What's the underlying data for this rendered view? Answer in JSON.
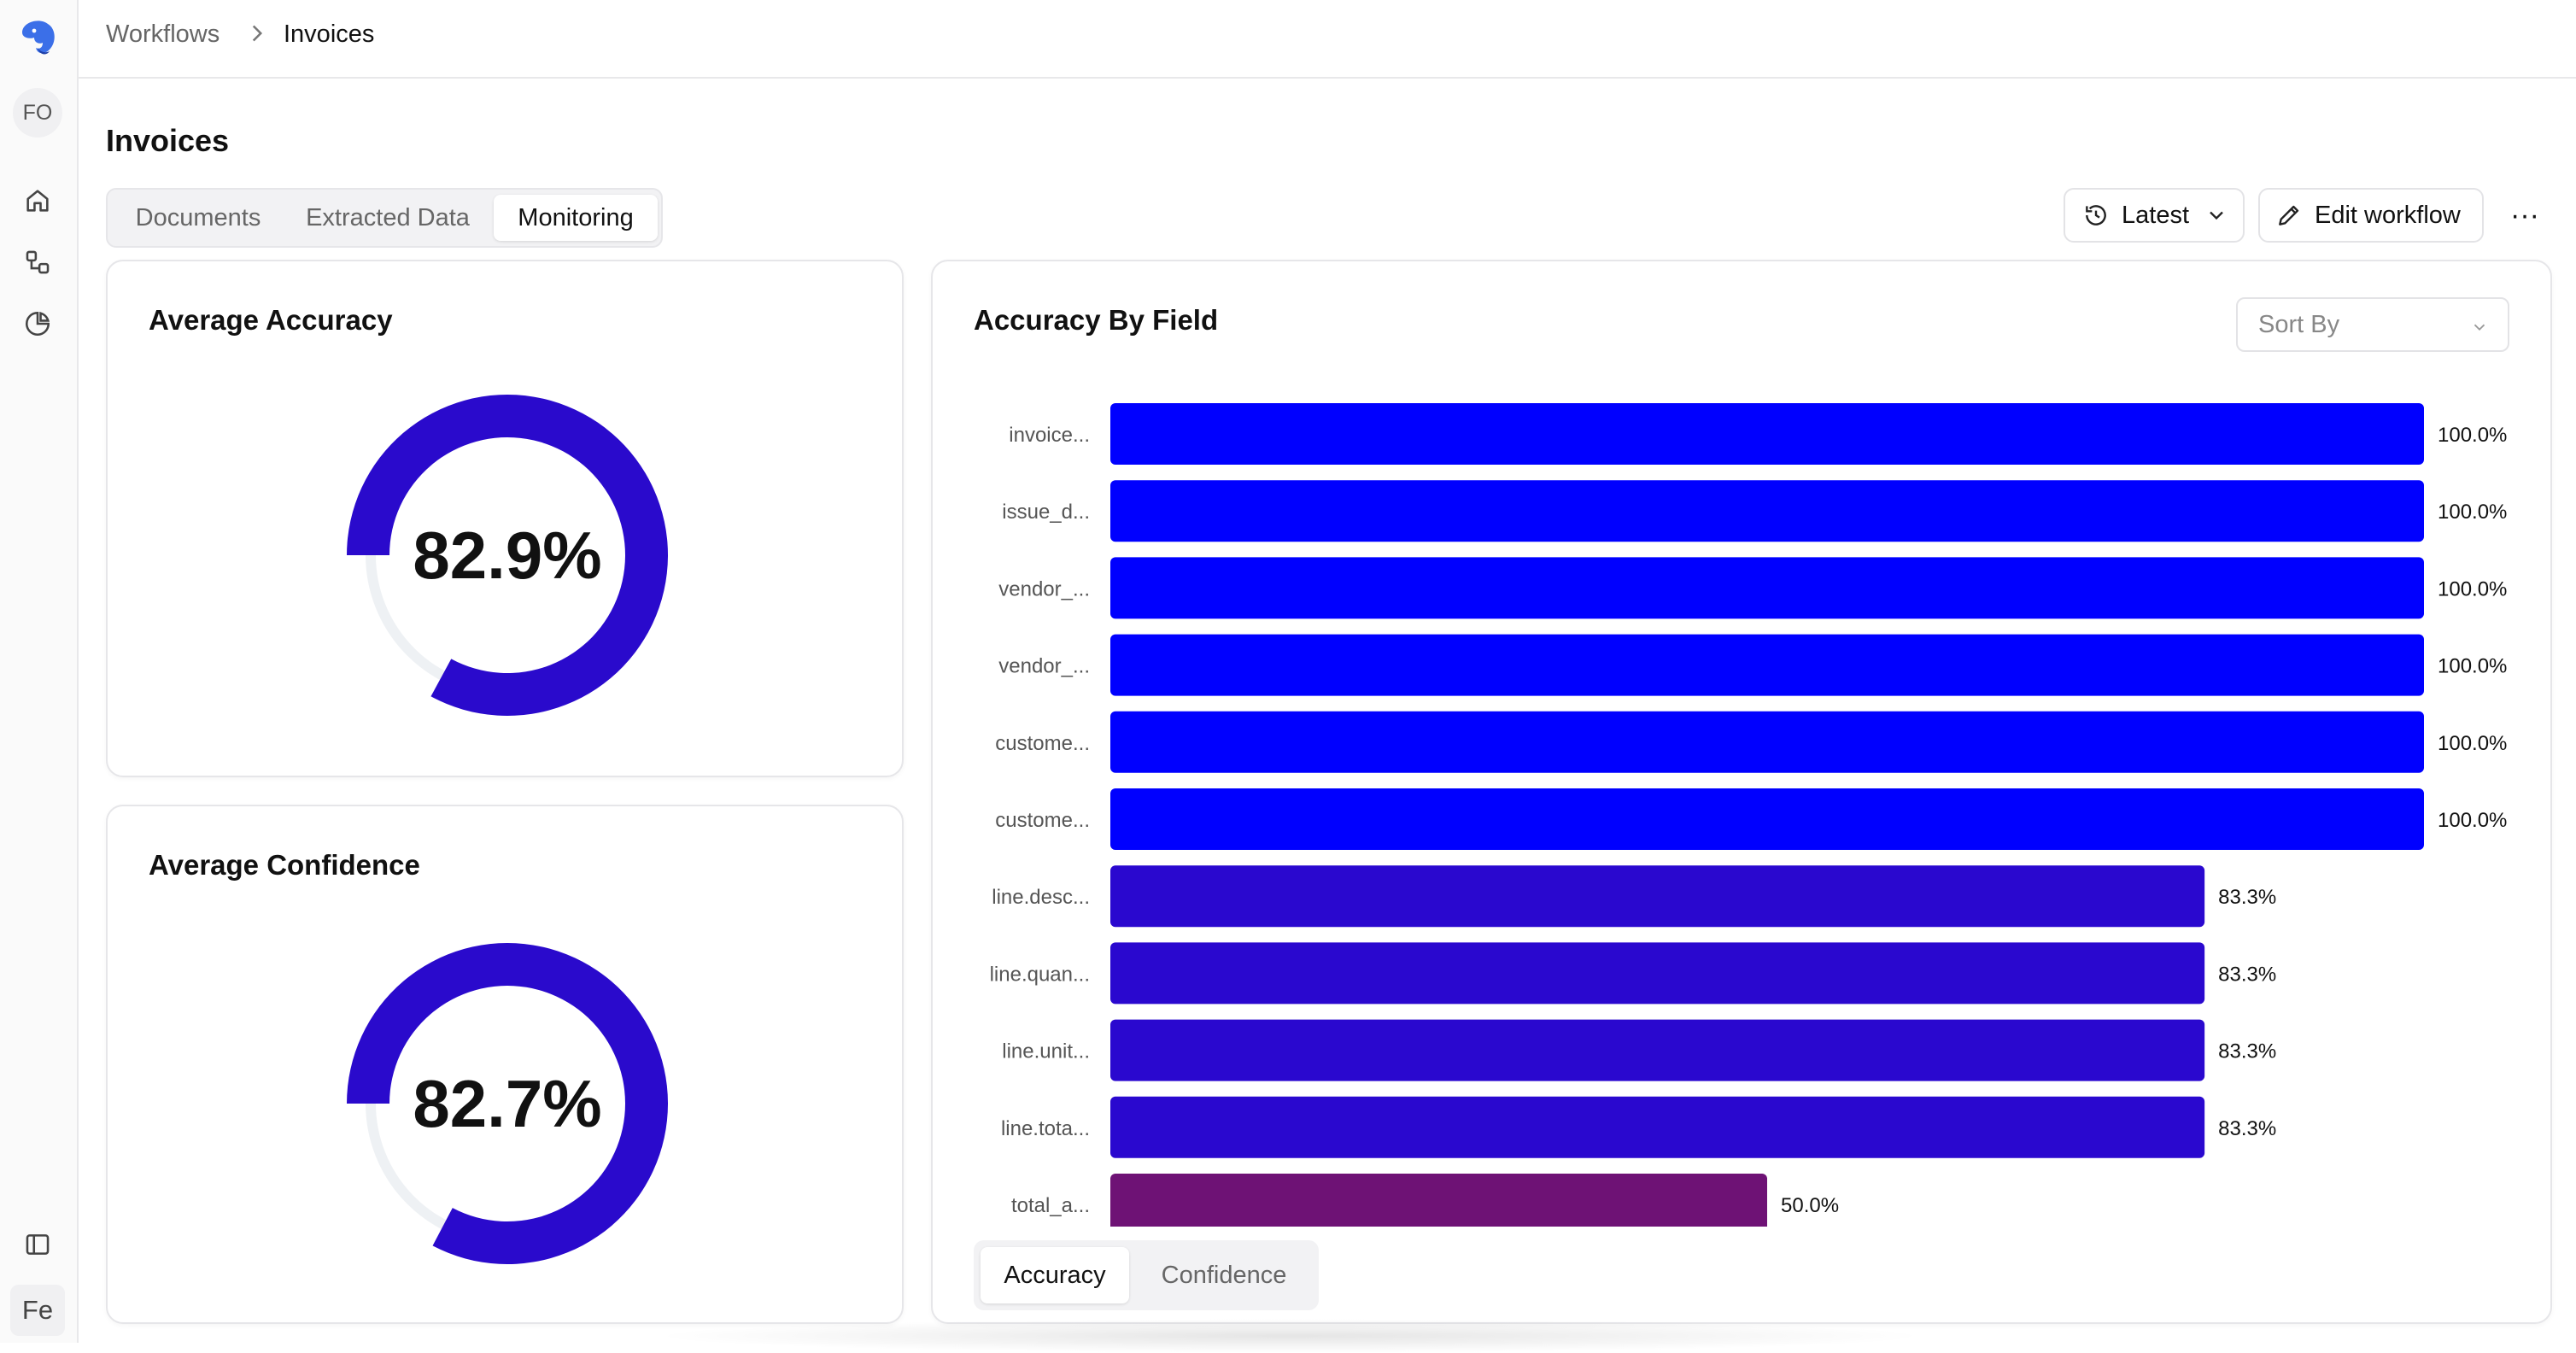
{
  "sidebar": {
    "logo_icon": "elephant-logo-icon",
    "avatar_initials": "FO",
    "nav_icons": [
      "home-icon",
      "workflow-icon",
      "pie-chart-icon"
    ],
    "panel_toggle_icon": "sidebar-panel-icon",
    "workspace_badge": "Fe"
  },
  "breadcrumb": {
    "parent": "Workflows",
    "separator_icon": "chevron-right-icon",
    "current": "Invoices"
  },
  "page": {
    "title": "Invoices",
    "tabs": [
      {
        "label": "Documents",
        "active": false
      },
      {
        "label": "Extracted Data",
        "active": false
      },
      {
        "label": "Monitoring",
        "active": true
      }
    ]
  },
  "toolbar": {
    "version_label": "Latest",
    "version_icon": "history-icon",
    "edit_label": "Edit workflow",
    "edit_icon": "pencil-icon",
    "more_icon": "more-horizontal-icon",
    "more_glyph": "···"
  },
  "accuracy_card": {
    "title": "Average Accuracy",
    "value_label": "82.9%",
    "value": 82.9
  },
  "confidence_card": {
    "title": "Average Confidence",
    "value_label": "82.7%",
    "value": 82.7
  },
  "field_chart": {
    "title": "Accuracy By Field",
    "sort_placeholder": "Sort By",
    "bottom_tabs": [
      {
        "label": "Accuracy",
        "active": true
      },
      {
        "label": "Confidence",
        "active": false
      }
    ]
  },
  "colors": {
    "donut_fill": "#2a0acc",
    "donut_track": "#eef1f4",
    "bar_full": "#0000ff",
    "bar_mid": "#2a08cf",
    "bar_low": "#6e1275"
  },
  "chart_data": {
    "type": "bar",
    "orientation": "horizontal",
    "title": "Accuracy By Field",
    "categories": [
      "invoice...",
      "issue_d...",
      "vendor_...",
      "vendor_...",
      "custome...",
      "custome...",
      "line.desc...",
      "line.quan...",
      "line.unit...",
      "line.tota...",
      "total_a..."
    ],
    "values": [
      100.0,
      100.0,
      100.0,
      100.0,
      100.0,
      100.0,
      83.3,
      83.3,
      83.3,
      83.3,
      50.0
    ],
    "value_labels": [
      "100.0%",
      "100.0%",
      "100.0%",
      "100.0%",
      "100.0%",
      "100.0%",
      "83.3%",
      "83.3%",
      "83.3%",
      "83.3%",
      "50.0%"
    ],
    "xlim": [
      0,
      100
    ],
    "grid": false
  }
}
